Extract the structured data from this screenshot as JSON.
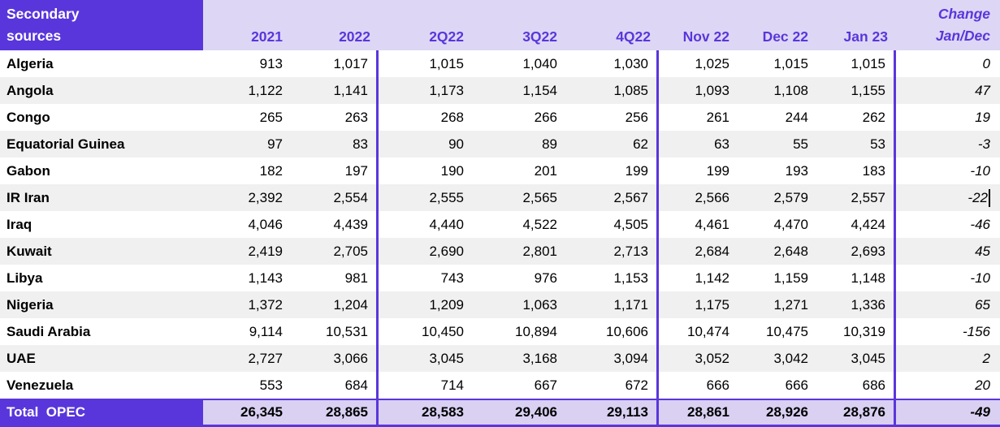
{
  "header": {
    "row_label_line1": "Secondary",
    "row_label_line2": "sources",
    "columns": [
      "2021",
      "2022",
      "2Q22",
      "3Q22",
      "4Q22",
      "Nov 22",
      "Dec 22",
      "Jan 23"
    ],
    "change_line1": "Change",
    "change_line2": "Jan/Dec"
  },
  "rows": [
    {
      "label": "Algeria",
      "values": [
        "913",
        "1,017",
        "1,015",
        "1,040",
        "1,030",
        "1,025",
        "1,015",
        "1,015"
      ],
      "change": "0"
    },
    {
      "label": "Angola",
      "values": [
        "1,122",
        "1,141",
        "1,173",
        "1,154",
        "1,085",
        "1,093",
        "1,108",
        "1,155"
      ],
      "change": "47"
    },
    {
      "label": "Congo",
      "values": [
        "265",
        "263",
        "268",
        "266",
        "256",
        "261",
        "244",
        "262"
      ],
      "change": "19"
    },
    {
      "label": "Equatorial Guinea",
      "values": [
        "97",
        "83",
        "90",
        "89",
        "62",
        "63",
        "55",
        "53"
      ],
      "change": "-3"
    },
    {
      "label": "Gabon",
      "values": [
        "182",
        "197",
        "190",
        "201",
        "199",
        "199",
        "193",
        "183"
      ],
      "change": "-10"
    },
    {
      "label": "IR Iran",
      "values": [
        "2,392",
        "2,554",
        "2,555",
        "2,565",
        "2,567",
        "2,566",
        "2,579",
        "2,557"
      ],
      "change": "-22",
      "caret": true
    },
    {
      "label": "Iraq",
      "values": [
        "4,046",
        "4,439",
        "4,440",
        "4,522",
        "4,505",
        "4,461",
        "4,470",
        "4,424"
      ],
      "change": "-46"
    },
    {
      "label": "Kuwait",
      "values": [
        "2,419",
        "2,705",
        "2,690",
        "2,801",
        "2,713",
        "2,684",
        "2,648",
        "2,693"
      ],
      "change": "45"
    },
    {
      "label": "Libya",
      "values": [
        "1,143",
        "981",
        "743",
        "976",
        "1,153",
        "1,142",
        "1,159",
        "1,148"
      ],
      "change": "-10"
    },
    {
      "label": "Nigeria",
      "values": [
        "1,372",
        "1,204",
        "1,209",
        "1,063",
        "1,171",
        "1,175",
        "1,271",
        "1,336"
      ],
      "change": "65"
    },
    {
      "label": "Saudi Arabia",
      "values": [
        "9,114",
        "10,531",
        "10,450",
        "10,894",
        "10,606",
        "10,474",
        "10,475",
        "10,319"
      ],
      "change": "-156"
    },
    {
      "label": "UAE",
      "values": [
        "2,727",
        "3,066",
        "3,045",
        "3,168",
        "3,094",
        "3,052",
        "3,042",
        "3,045"
      ],
      "change": "2"
    },
    {
      "label": "Venezuela",
      "values": [
        "553",
        "684",
        "714",
        "667",
        "672",
        "666",
        "666",
        "686"
      ],
      "change": "20"
    }
  ],
  "total": {
    "label": "Total  OPEC",
    "values": [
      "26,345",
      "28,865",
      "28,583",
      "29,406",
      "29,113",
      "28,861",
      "28,926",
      "28,876"
    ],
    "change": "-49"
  },
  "colors": {
    "header_purple": "#5936DB",
    "header_light_purple": "#DDD7F5",
    "total_light_purple": "#D9D0F2",
    "alt_row_gray": "#F0F0F0",
    "divider_purple": "#5936DB"
  }
}
